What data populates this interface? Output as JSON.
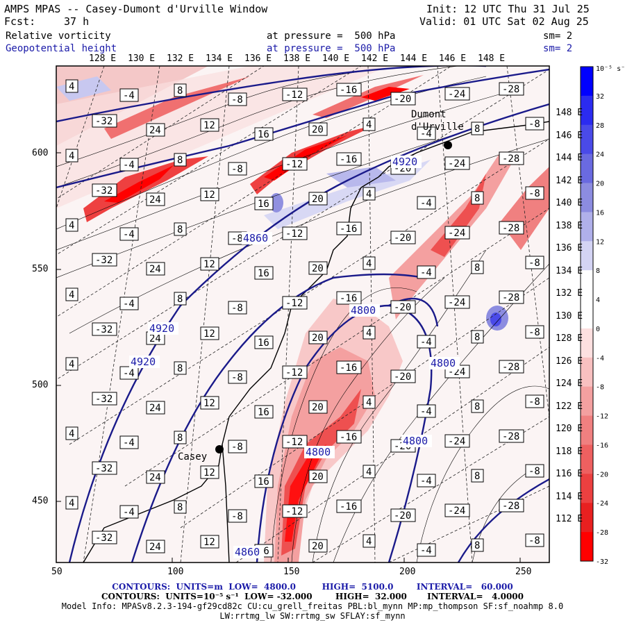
{
  "header": {
    "title": "AMPS MPAS -- Casey-Dumont d'Urville Window",
    "init": "Init: 12 UTC Thu 31 Jul 25",
    "fcst_label": "Fcst:",
    "fcst_value": "37 h",
    "valid": "Valid: 01 UTC Sat 02 Aug 25",
    "field1": {
      "name": "Relative vorticity",
      "pressure": "at pressure =  500 hPa",
      "sm": "sm= 2"
    },
    "field2": {
      "name": "Geopotential height",
      "pressure": "at pressure =  500 hPa",
      "sm": "sm= 2"
    }
  },
  "longitude_labels": [
    "128 E",
    "130 E",
    "132 E",
    "134 E",
    "136 E",
    "138 E",
    "140 E",
    "142 E",
    "144 E",
    "146 E",
    "148 E"
  ],
  "right_labels": [
    "148 E",
    "146 E",
    "144 E",
    "142 E",
    "140 E",
    "138 E",
    "136 E",
    "134 E",
    "132 E",
    "130 E",
    "128 E",
    "126 E",
    "124 E",
    "122 E",
    "120 E",
    "118 E",
    "116 E",
    "114 E",
    "112 E"
  ],
  "x_axis": [
    "50",
    "100",
    "150",
    "200",
    "250"
  ],
  "y_axis": [
    "600",
    "550",
    "500",
    "450"
  ],
  "colorbar": {
    "unit": "10⁻⁵ s⁻¹",
    "labels": [
      "32",
      "28",
      "24",
      "20",
      "16",
      "12",
      "8",
      "4",
      "0",
      "-4",
      "-8",
      "-12",
      "-16",
      "-20",
      "-24",
      "-28",
      "-32"
    ],
    "colors": [
      "#0000ff",
      "#2b2bf0",
      "#4a4ae8",
      "#6a6ae0",
      "#8c8ce0",
      "#b0b0ea",
      "#d4d4f4",
      "#ffffff",
      "#ffffff",
      "#fde0e0",
      "#f8c0c0",
      "#f4a0a0",
      "#f08080",
      "#ee6060",
      "#ec4040",
      "#e82020",
      "#ff0000"
    ]
  },
  "places": [
    {
      "name": "Dumont\nd'Urville"
    },
    {
      "name": "Casey"
    }
  ],
  "height_labels": [
    "4920",
    "4920",
    "4920",
    "4800",
    "4800",
    "4800",
    "4800",
    "4860",
    "4860"
  ],
  "vort_labels": [
    "4",
    "-4",
    "8",
    "-8",
    "-12",
    "-16",
    "-20",
    "-24",
    "-28",
    "-32",
    "24",
    "12",
    "16",
    "20",
    "4",
    "-4",
    "8",
    "-8"
  ],
  "footer": {
    "line1_label": "CONTOURS:  UNITS=m  LOW=  4800.0         HIGH=  5100.0        INTERVAL=   60.000",
    "line2_label": "CONTOURS:  UNITS=10⁻⁵ s⁻¹  LOW= -32.000        HIGH=  32.000       INTERVAL=   4.0000",
    "line3": "Model Info: MPASv8.2.3-194-gf29cd82c CU:cu_grell_freitas PBL:bl_mynn MP:mp_thompson SF:sf_noahmp 8.0",
    "line4": "LW:rrtmg_lw SW:rrtmg_sw SFLAY:sf_mynn"
  }
}
